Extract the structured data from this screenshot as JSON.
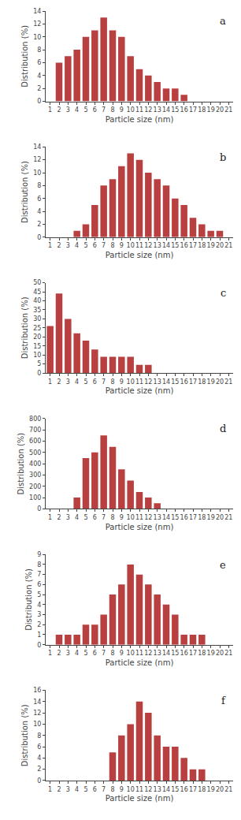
{
  "chart_data": [
    {
      "type": "bar",
      "annotations": [
        "a"
      ],
      "categories": [
        "1",
        "2",
        "3",
        "4",
        "5",
        "6",
        "7",
        "8",
        "9",
        "10",
        "11",
        "12",
        "13",
        "14",
        "15",
        "16",
        "17",
        "18",
        "19",
        "20",
        "21"
      ],
      "values": [
        0,
        6,
        7,
        8,
        10,
        11,
        13,
        11,
        10,
        7,
        5,
        4,
        3,
        2,
        2,
        1,
        0,
        0,
        0,
        0,
        0
      ],
      "color": "#b94040",
      "xlabel": "Particle size (nm)",
      "ylabel": "Distribution (%)",
      "ylim": [
        0,
        14
      ],
      "yticks": [
        0,
        2,
        4,
        6,
        8,
        10,
        12,
        14
      ],
      "grid": false
    },
    {
      "type": "bar",
      "annotations": [
        "b"
      ],
      "categories": [
        "1",
        "2",
        "3",
        "4",
        "5",
        "6",
        "7",
        "8",
        "9",
        "10",
        "11",
        "12",
        "13",
        "14",
        "15",
        "16",
        "17",
        "18",
        "19",
        "20",
        "21"
      ],
      "values": [
        0,
        0,
        0,
        1,
        2,
        5,
        8,
        9,
        11,
        13,
        12,
        10,
        9,
        8,
        6,
        5,
        3,
        2,
        1,
        1,
        0
      ],
      "color": "#b94040",
      "xlabel": "Particle size (nm)",
      "ylabel": "Distribution (%)",
      "ylim": [
        0,
        14
      ],
      "yticks": [
        0,
        2,
        4,
        6,
        8,
        10,
        12,
        14
      ],
      "grid": false
    },
    {
      "type": "bar",
      "annotations": [
        "c"
      ],
      "categories": [
        "1",
        "2",
        "3",
        "4",
        "5",
        "6",
        "7",
        "8",
        "9",
        "10",
        "11",
        "12",
        "13",
        "14",
        "15",
        "16",
        "17",
        "18",
        "19",
        "20",
        "21"
      ],
      "values": [
        26,
        44,
        30,
        22,
        18,
        13,
        9,
        9,
        9,
        9,
        4.5,
        4.5,
        0,
        0,
        0,
        0,
        0,
        0,
        0,
        0,
        0
      ],
      "color": "#b94040",
      "xlabel": "Particle size (nm)",
      "ylabel": "Distribution (%)",
      "ylim": [
        0,
        50
      ],
      "yticks": [
        0,
        5,
        10,
        15,
        20,
        25,
        30,
        35,
        40,
        45,
        50
      ],
      "grid": false
    },
    {
      "type": "bar",
      "annotations": [
        "d"
      ],
      "categories": [
        "1",
        "2",
        "3",
        "4",
        "5",
        "6",
        "7",
        "8",
        "9",
        "10",
        "11",
        "12",
        "13",
        "14",
        "15",
        "16",
        "17",
        "18",
        "19",
        "20",
        "21"
      ],
      "values": [
        0,
        0,
        0,
        100,
        450,
        500,
        650,
        550,
        350,
        250,
        150,
        100,
        50,
        0,
        0,
        0,
        0,
        0,
        0,
        0,
        0
      ],
      "color": "#b94040",
      "xlabel": "Particle size (nm)",
      "ylabel": "Distribution (%)",
      "ylim": [
        0,
        800
      ],
      "yticks": [
        0,
        100,
        200,
        300,
        400,
        500,
        600,
        700,
        800
      ],
      "grid": false
    },
    {
      "type": "bar",
      "annotations": [
        "e"
      ],
      "categories": [
        "1",
        "2",
        "3",
        "4",
        "5",
        "6",
        "7",
        "8",
        "9",
        "10",
        "11",
        "12",
        "13",
        "14",
        "15",
        "16",
        "17",
        "18",
        "19",
        "20",
        "21"
      ],
      "values": [
        0,
        1,
        1,
        1,
        2,
        2,
        3,
        5,
        6,
        8,
        7,
        6,
        5,
        4,
        3,
        1,
        1,
        1,
        0,
        0,
        0
      ],
      "color": "#b94040",
      "xlabel": "Particle size (nm)",
      "ylabel": "Distribution (%)",
      "ylim": [
        0,
        9
      ],
      "yticks": [
        0,
        1,
        2,
        3,
        4,
        5,
        6,
        7,
        8,
        9
      ],
      "grid": false
    },
    {
      "type": "bar",
      "annotations": [
        "f"
      ],
      "categories": [
        "1",
        "2",
        "3",
        "4",
        "5",
        "6",
        "7",
        "8",
        "9",
        "10",
        "11",
        "12",
        "13",
        "14",
        "15",
        "16",
        "17",
        "18",
        "19",
        "20",
        "21"
      ],
      "values": [
        0,
        0,
        0,
        0,
        0,
        0,
        0,
        5,
        8,
        10,
        14,
        12,
        8,
        6,
        6,
        4,
        2,
        2,
        0,
        0,
        0
      ],
      "color": "#b94040",
      "xlabel": "Particle size (nm)",
      "ylabel": "Distribution (%)",
      "ylim": [
        0,
        16
      ],
      "yticks": [
        0,
        2,
        4,
        6,
        8,
        10,
        12,
        14,
        16
      ],
      "grid": false
    }
  ]
}
